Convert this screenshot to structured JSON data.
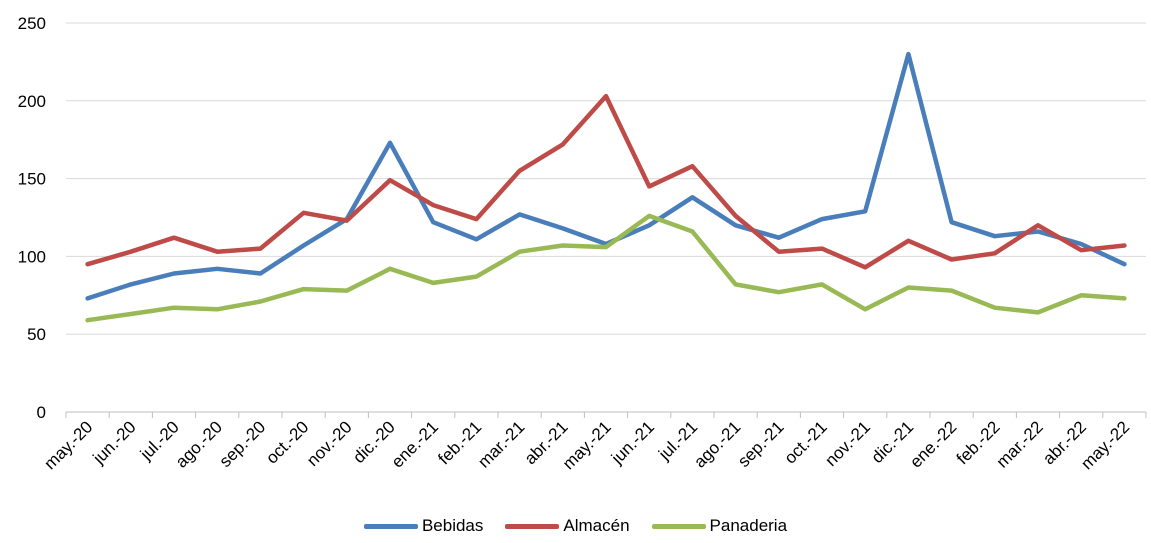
{
  "chart_data": {
    "type": "line",
    "categories": [
      "may.-20",
      "jun.-20",
      "jul.-20",
      "ago.-20",
      "sep.-20",
      "oct.-20",
      "nov.-20",
      "dic.-20",
      "ene.-21",
      "feb.-21",
      "mar.-21",
      "abr.-21",
      "may.-21",
      "jun.-21",
      "jul.-21",
      "ago.-21",
      "sep.-21",
      "oct.-21",
      "nov.-21",
      "dic.-21",
      "ene.-22",
      "feb.-22",
      "mar.-22",
      "abr.-22",
      "may.-22"
    ],
    "series": [
      {
        "name": "Bebidas",
        "color": "#4A7EBB",
        "values": [
          73,
          82,
          89,
          92,
          89,
          107,
          124,
          173,
          122,
          111,
          127,
          118,
          108,
          120,
          138,
          120,
          112,
          124,
          129,
          230,
          122,
          113,
          116,
          108,
          95
        ]
      },
      {
        "name": "Almacén",
        "color": "#BE4B48",
        "values": [
          95,
          103,
          112,
          103,
          105,
          128,
          123,
          149,
          133,
          124,
          155,
          172,
          203,
          145,
          158,
          126,
          103,
          105,
          93,
          110,
          98,
          102,
          120,
          104,
          107
        ]
      },
      {
        "name": "Panaderia",
        "color": "#98B954",
        "values": [
          59,
          63,
          67,
          66,
          71,
          79,
          78,
          92,
          83,
          87,
          103,
          107,
          106,
          126,
          116,
          82,
          77,
          82,
          66,
          80,
          78,
          67,
          64,
          75,
          73
        ]
      }
    ],
    "yticks": [
      0,
      50,
      100,
      150,
      200,
      250
    ],
    "ylim": [
      0,
      250
    ],
    "grid": true,
    "legend_position": "bottom"
  }
}
